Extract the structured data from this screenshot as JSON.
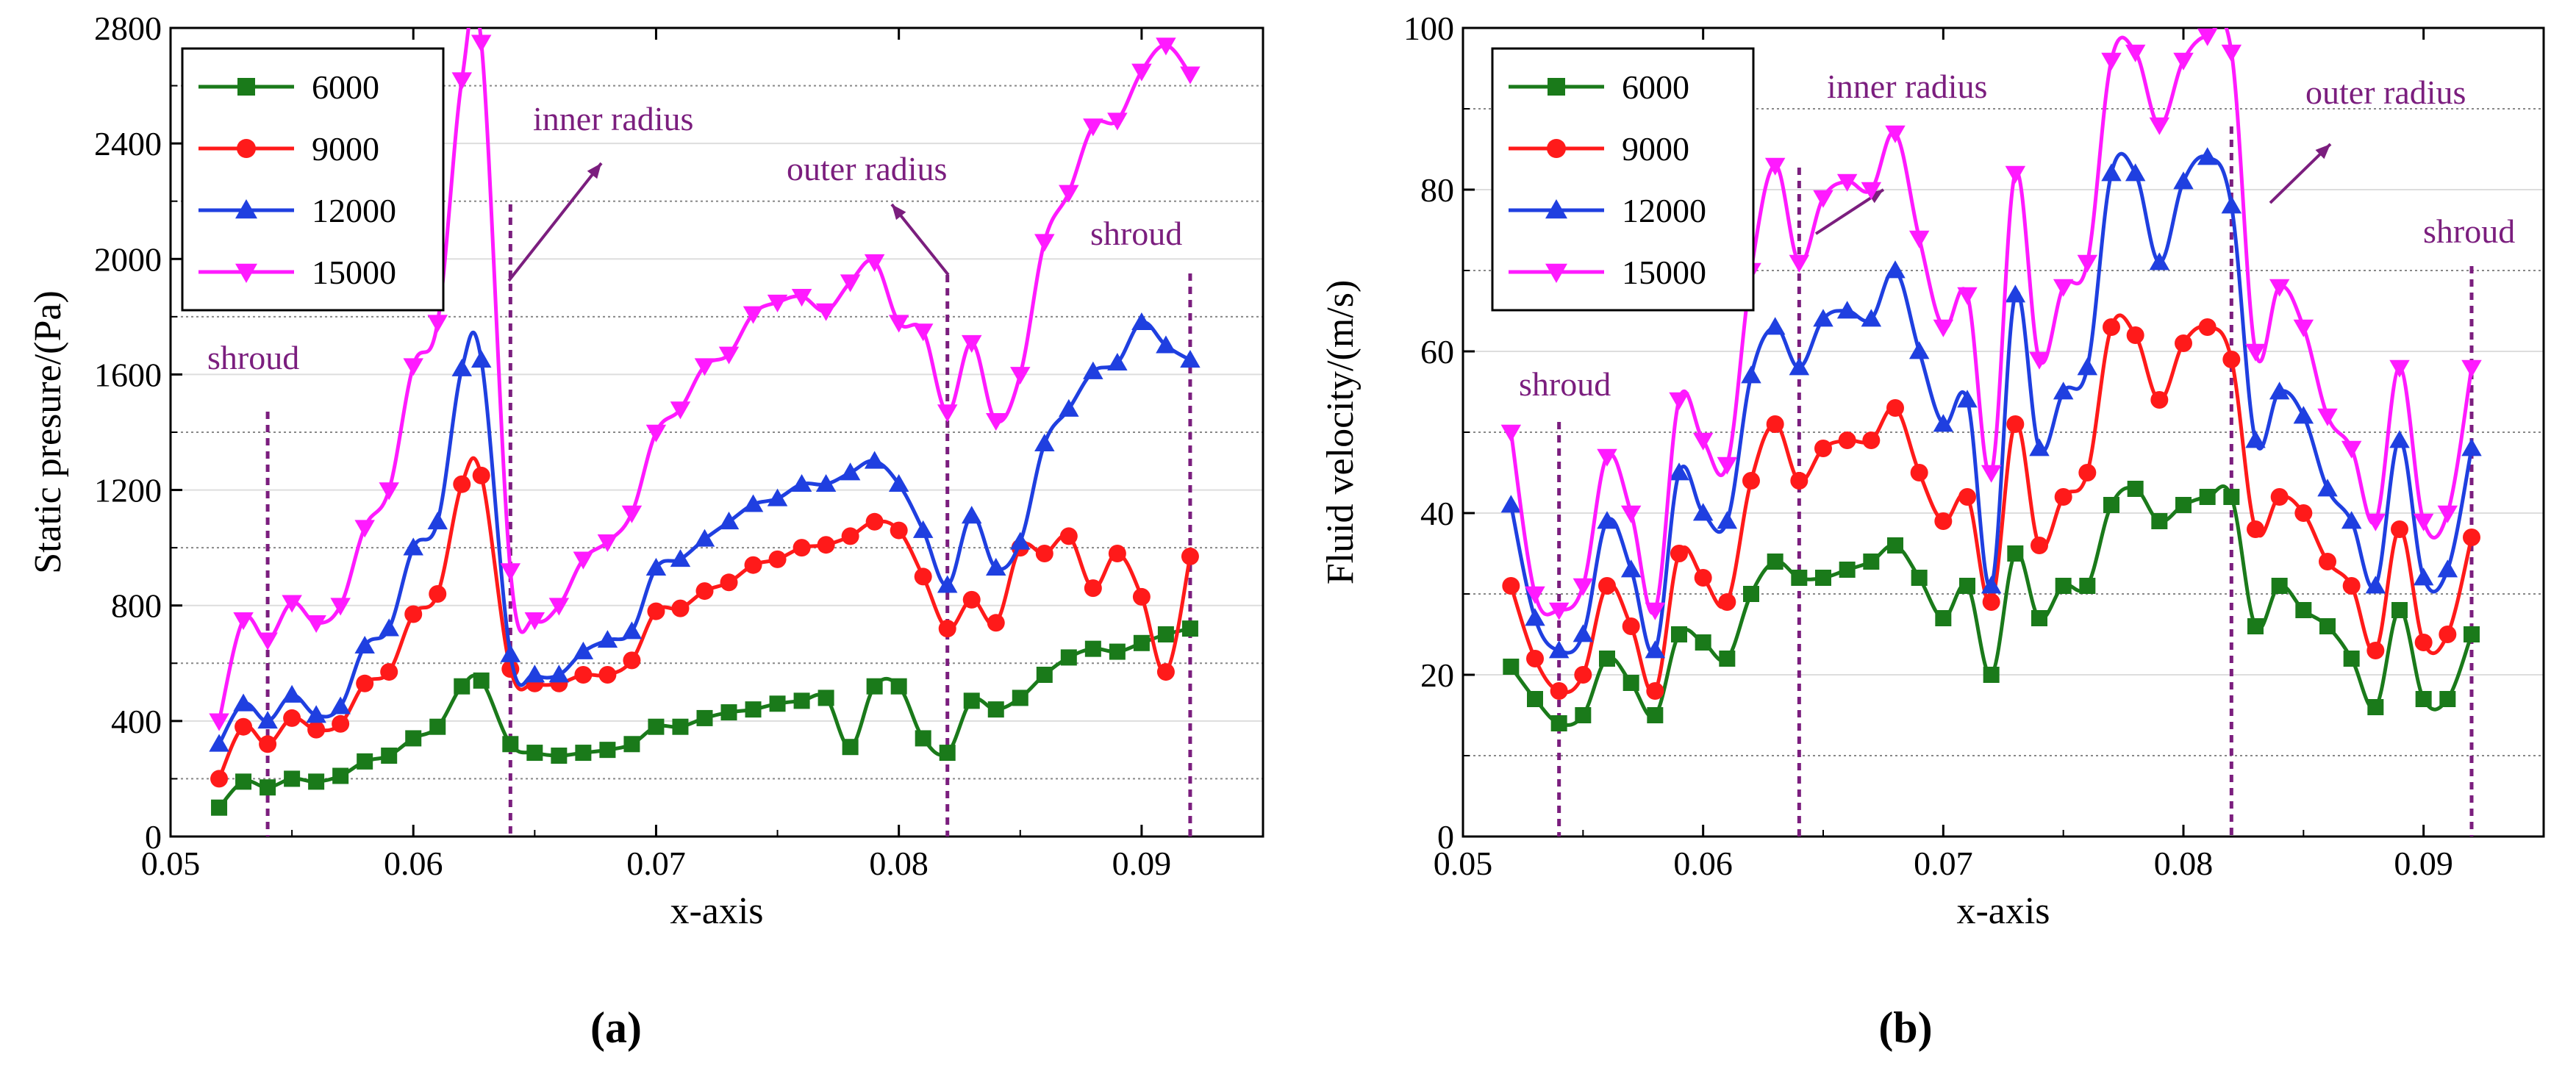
{
  "chart_data": [
    {
      "type": "line",
      "panel_label": "(a)",
      "title": "",
      "xlabel": "x-axis",
      "ylabel": "Static presure/(Pa)",
      "xlim": [
        0.05,
        0.095
      ],
      "ylim": [
        0,
        2800
      ],
      "xticks": [
        0.05,
        0.06,
        0.07,
        0.08,
        0.09
      ],
      "xtick_labels": [
        "0.05",
        "0.06",
        "0.07",
        "0.08",
        "0.09"
      ],
      "yticks": [
        0,
        400,
        800,
        1200,
        1600,
        2000,
        2400,
        2800
      ],
      "ytick_labels": [
        "0",
        "400",
        "800",
        "1200",
        "1600",
        "2000",
        "2400",
        "2800"
      ],
      "gridlines_y": [
        200,
        600,
        1000,
        1400,
        1800,
        2200,
        2600
      ],
      "legend_position": "top-left",
      "x": [
        0.052,
        0.053,
        0.054,
        0.055,
        0.056,
        0.057,
        0.058,
        0.059,
        0.06,
        0.061,
        0.062,
        0.0628,
        0.064,
        0.065,
        0.066,
        0.067,
        0.068,
        0.069,
        0.07,
        0.071,
        0.072,
        0.073,
        0.074,
        0.075,
        0.076,
        0.077,
        0.078,
        0.079,
        0.08,
        0.081,
        0.082,
        0.083,
        0.084,
        0.085,
        0.086,
        0.087,
        0.088,
        0.089,
        0.09,
        0.091,
        0.092
      ],
      "series": [
        {
          "name": "6000",
          "color": "#1A7A1A",
          "marker": "square",
          "values": [
            100,
            190,
            170,
            200,
            190,
            210,
            260,
            280,
            340,
            380,
            520,
            540,
            320,
            290,
            280,
            290,
            300,
            320,
            380,
            380,
            410,
            430,
            440,
            460,
            470,
            480,
            310,
            520,
            520,
            340,
            290,
            470,
            440,
            480,
            560,
            620,
            650,
            640,
            670,
            700,
            720
          ]
        },
        {
          "name": "9000",
          "color": "#FF1A1A",
          "marker": "circle",
          "values": [
            200,
            380,
            320,
            410,
            370,
            390,
            530,
            570,
            770,
            840,
            1220,
            1250,
            580,
            530,
            530,
            560,
            560,
            610,
            780,
            790,
            850,
            880,
            940,
            960,
            1000,
            1010,
            1040,
            1090,
            1060,
            900,
            720,
            820,
            740,
            1000,
            980,
            1040,
            860,
            980,
            830,
            570,
            970
          ]
        },
        {
          "name": "12000",
          "color": "#1F3FE0",
          "marker": "triangle-up",
          "values": [
            320,
            460,
            400,
            490,
            420,
            450,
            660,
            720,
            1000,
            1090,
            1620,
            1650,
            630,
            560,
            560,
            640,
            680,
            710,
            930,
            960,
            1030,
            1090,
            1150,
            1170,
            1220,
            1220,
            1260,
            1300,
            1220,
            1060,
            870,
            1110,
            930,
            1020,
            1360,
            1480,
            1610,
            1640,
            1780,
            1700,
            1650
          ]
        },
        {
          "name": "15000",
          "color": "#FF1AFF",
          "marker": "triangle-down",
          "values": [
            400,
            750,
            680,
            810,
            740,
            800,
            1070,
            1200,
            1630,
            1780,
            2620,
            2750,
            920,
            750,
            800,
            960,
            1020,
            1120,
            1400,
            1480,
            1630,
            1670,
            1810,
            1850,
            1870,
            1820,
            1920,
            1990,
            1780,
            1750,
            1470,
            1710,
            1440,
            1600,
            2060,
            2230,
            2460,
            2480,
            2650,
            2740,
            2640
          ]
        }
      ],
      "annotations": [
        {
          "text": "shroud",
          "x_line": 0.054
        },
        {
          "text": "inner radius",
          "x_line": 0.064
        },
        {
          "text": "outer radius",
          "x_line": 0.082
        },
        {
          "text": "shroud",
          "x_line": 0.092
        }
      ]
    },
    {
      "type": "line",
      "panel_label": "(b)",
      "title": "",
      "xlabel": "x-axis",
      "ylabel": "Fluid velocity/(m/s)",
      "xlim": [
        0.05,
        0.095
      ],
      "ylim": [
        0,
        100
      ],
      "xticks": [
        0.05,
        0.06,
        0.07,
        0.08,
        0.09
      ],
      "xtick_labels": [
        "0.05",
        "0.06",
        "0.07",
        "0.08",
        "0.09"
      ],
      "yticks": [
        0,
        20,
        40,
        60,
        80,
        100
      ],
      "ytick_labels": [
        "0",
        "20",
        "40",
        "60",
        "80",
        "100"
      ],
      "gridlines_y": [
        10,
        30,
        50,
        70,
        90
      ],
      "legend_position": "top-left",
      "x": [
        0.052,
        0.053,
        0.054,
        0.055,
        0.056,
        0.057,
        0.058,
        0.059,
        0.06,
        0.061,
        0.062,
        0.063,
        0.064,
        0.065,
        0.066,
        0.067,
        0.068,
        0.069,
        0.07,
        0.071,
        0.072,
        0.073,
        0.074,
        0.075,
        0.076,
        0.077,
        0.078,
        0.079,
        0.08,
        0.081,
        0.082,
        0.083,
        0.084,
        0.085,
        0.086,
        0.087,
        0.088,
        0.089,
        0.09,
        0.091,
        0.092
      ],
      "series": [
        {
          "name": "6000",
          "color": "#1A7A1A",
          "marker": "square",
          "values": [
            21,
            17,
            14,
            15,
            22,
            19,
            15,
            25,
            24,
            22,
            30,
            34,
            32,
            32,
            33,
            34,
            36,
            32,
            27,
            31,
            20,
            35,
            27,
            31,
            31,
            41,
            43,
            39,
            41,
            42,
            42,
            26,
            31,
            28,
            26,
            22,
            16,
            28,
            17,
            17,
            25
          ]
        },
        {
          "name": "9000",
          "color": "#FF1A1A",
          "marker": "circle",
          "values": [
            31,
            22,
            18,
            20,
            31,
            26,
            18,
            35,
            32,
            29,
            44,
            51,
            44,
            48,
            49,
            49,
            53,
            45,
            39,
            42,
            29,
            51,
            36,
            42,
            45,
            63,
            62,
            54,
            61,
            63,
            59,
            38,
            42,
            40,
            34,
            31,
            23,
            38,
            24,
            25,
            37
          ]
        },
        {
          "name": "12000",
          "color": "#1F3FE0",
          "marker": "triangle-up",
          "values": [
            41,
            27,
            23,
            25,
            39,
            33,
            23,
            45,
            40,
            39,
            57,
            63,
            58,
            64,
            65,
            64,
            70,
            60,
            51,
            54,
            31,
            67,
            48,
            55,
            58,
            82,
            82,
            71,
            81,
            84,
            78,
            49,
            55,
            52,
            43,
            39,
            31,
            49,
            32,
            33,
            48
          ]
        },
        {
          "name": "15000",
          "color": "#FF1AFF",
          "marker": "triangle-down",
          "values": [
            50,
            30,
            28,
            31,
            47,
            40,
            28,
            54,
            49,
            46,
            70,
            83,
            71,
            79,
            81,
            80,
            87,
            74,
            63,
            67,
            45,
            82,
            59,
            68,
            71,
            96,
            97,
            88,
            96,
            99,
            97,
            60,
            68,
            63,
            52,
            48,
            39,
            58,
            39,
            40,
            58
          ]
        }
      ],
      "annotations": [
        {
          "text": "shroud",
          "x_line": 0.054
        },
        {
          "text": "inner radius",
          "x_line": 0.064
        },
        {
          "text": "outer radius",
          "x_line": 0.082
        },
        {
          "text": "shroud",
          "x_line": 0.092
        }
      ]
    }
  ]
}
